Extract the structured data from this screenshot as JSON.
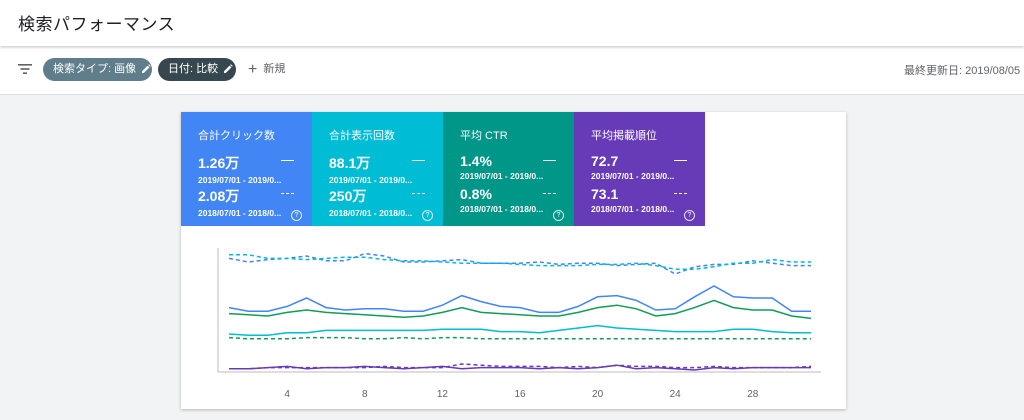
{
  "header": {
    "title": "検索パフォーマンス"
  },
  "toolbar": {
    "chips": [
      {
        "label": "検索タイプ: 画像"
      },
      {
        "label": "日付: 比較"
      }
    ],
    "new_label": "新規",
    "last_updated": "最終更新日: 2019/08/05"
  },
  "metrics": [
    {
      "label": "合計クリック数",
      "value_current": "1.26万",
      "range_current": "2019/07/01 - 2019/0...",
      "value_previous": "2.08万",
      "range_previous": "2018/07/01 - 2018/0...",
      "color": "#4285f4"
    },
    {
      "label": "合計表示回数",
      "value_current": "88.1万",
      "range_current": "2019/07/01 - 2019/0...",
      "value_previous": "250万",
      "range_previous": "2018/07/01 - 2018/0...",
      "color": "#00bcd4"
    },
    {
      "label": "平均 CTR",
      "value_current": "1.4%",
      "range_current": "2019/07/01 - 2019/0...",
      "value_previous": "0.8%",
      "range_previous": "2018/07/01 - 2018/0...",
      "color": "#009688"
    },
    {
      "label": "平均掲載順位",
      "value_current": "72.7",
      "range_current": "2019/07/01 - 2019/0...",
      "value_previous": "73.1",
      "range_previous": "2018/07/01 - 2018/0...",
      "color": "#673ab7"
    }
  ],
  "chart_data": {
    "type": "line",
    "x": [
      1,
      2,
      3,
      4,
      5,
      6,
      7,
      8,
      9,
      10,
      11,
      12,
      13,
      14,
      15,
      16,
      17,
      18,
      19,
      20,
      21,
      22,
      23,
      24,
      25,
      26,
      27,
      28,
      29,
      30,
      31
    ],
    "x_ticks": [
      4,
      8,
      12,
      16,
      20,
      24,
      28
    ],
    "series": [
      {
        "metric": "clicks",
        "period": "current",
        "color": "#4285f4",
        "style": "solid",
        "values": [
          0.52,
          0.49,
          0.49,
          0.53,
          0.6,
          0.52,
          0.5,
          0.51,
          0.51,
          0.49,
          0.49,
          0.54,
          0.62,
          0.57,
          0.53,
          0.52,
          0.48,
          0.48,
          0.53,
          0.61,
          0.62,
          0.58,
          0.5,
          0.51,
          0.61,
          0.7,
          0.61,
          0.6,
          0.6,
          0.49,
          0.49
        ]
      },
      {
        "metric": "clicks",
        "period": "previous",
        "color": "#4285f4",
        "style": "dashed",
        "values": [
          0.93,
          0.9,
          0.92,
          0.93,
          0.95,
          0.91,
          0.91,
          0.97,
          0.95,
          0.9,
          0.9,
          0.91,
          0.92,
          0.89,
          0.89,
          0.89,
          0.9,
          0.88,
          0.89,
          0.89,
          0.87,
          0.88,
          0.89,
          0.8,
          0.86,
          0.88,
          0.88,
          0.91,
          0.89,
          0.87,
          0.87
        ]
      },
      {
        "metric": "impressions",
        "period": "current",
        "color": "#00bcd4",
        "style": "solid",
        "values": [
          0.3,
          0.29,
          0.29,
          0.31,
          0.31,
          0.33,
          0.33,
          0.33,
          0.33,
          0.33,
          0.33,
          0.34,
          0.34,
          0.34,
          0.32,
          0.32,
          0.31,
          0.33,
          0.35,
          0.37,
          0.35,
          0.34,
          0.33,
          0.32,
          0.32,
          0.32,
          0.34,
          0.34,
          0.32,
          0.31,
          0.31
        ]
      },
      {
        "metric": "impressions",
        "period": "previous",
        "color": "#00bcd4",
        "style": "dashed",
        "values": [
          0.96,
          0.96,
          0.93,
          0.93,
          0.92,
          0.93,
          0.94,
          0.94,
          0.92,
          0.91,
          0.91,
          0.9,
          0.89,
          0.89,
          0.89,
          0.88,
          0.87,
          0.87,
          0.87,
          0.88,
          0.88,
          0.89,
          0.87,
          0.84,
          0.84,
          0.86,
          0.89,
          0.89,
          0.92,
          0.9,
          0.9
        ]
      },
      {
        "metric": "ctr",
        "period": "current",
        "color": "#0f9d58",
        "style": "solid",
        "values": [
          0.47,
          0.46,
          0.45,
          0.48,
          0.5,
          0.48,
          0.47,
          0.46,
          0.45,
          0.44,
          0.45,
          0.48,
          0.52,
          0.48,
          0.47,
          0.46,
          0.45,
          0.45,
          0.48,
          0.52,
          0.54,
          0.51,
          0.45,
          0.47,
          0.52,
          0.58,
          0.52,
          0.5,
          0.5,
          0.45,
          0.43
        ]
      },
      {
        "metric": "ctr",
        "period": "previous",
        "color": "#0f9d58",
        "style": "dashed",
        "values": [
          0.27,
          0.26,
          0.26,
          0.26,
          0.27,
          0.27,
          0.27,
          0.26,
          0.26,
          0.27,
          0.26,
          0.27,
          0.27,
          0.26,
          0.26,
          0.26,
          0.26,
          0.26,
          0.26,
          0.26,
          0.26,
          0.26,
          0.26,
          0.26,
          0.26,
          0.26,
          0.26,
          0.26,
          0.26,
          0.26,
          0.26
        ]
      },
      {
        "metric": "position",
        "period": "current",
        "color": "#673ab7",
        "style": "solid",
        "values": [
          0.01,
          0.01,
          0.02,
          0.03,
          0.01,
          0.02,
          0.02,
          0.03,
          0.02,
          0.01,
          0.02,
          0.03,
          0.01,
          0.02,
          0.02,
          0.02,
          0.01,
          0.02,
          0.01,
          0.02,
          0.04,
          0.01,
          0.02,
          0.01,
          0.0,
          0.02,
          0.01,
          0.02,
          0.02,
          0.02,
          0.02
        ]
      },
      {
        "metric": "position",
        "period": "previous",
        "color": "#673ab7",
        "style": "dashed",
        "values": [
          0.01,
          0.01,
          0.02,
          0.02,
          0.02,
          0.02,
          0.02,
          0.02,
          0.03,
          0.02,
          0.02,
          0.02,
          0.05,
          0.04,
          0.03,
          0.03,
          0.03,
          0.02,
          0.03,
          0.02,
          0.04,
          0.03,
          0.03,
          0.02,
          0.02,
          0.03,
          0.02,
          0.02,
          0.02,
          0.02,
          0.03
        ]
      }
    ],
    "grid": false
  }
}
